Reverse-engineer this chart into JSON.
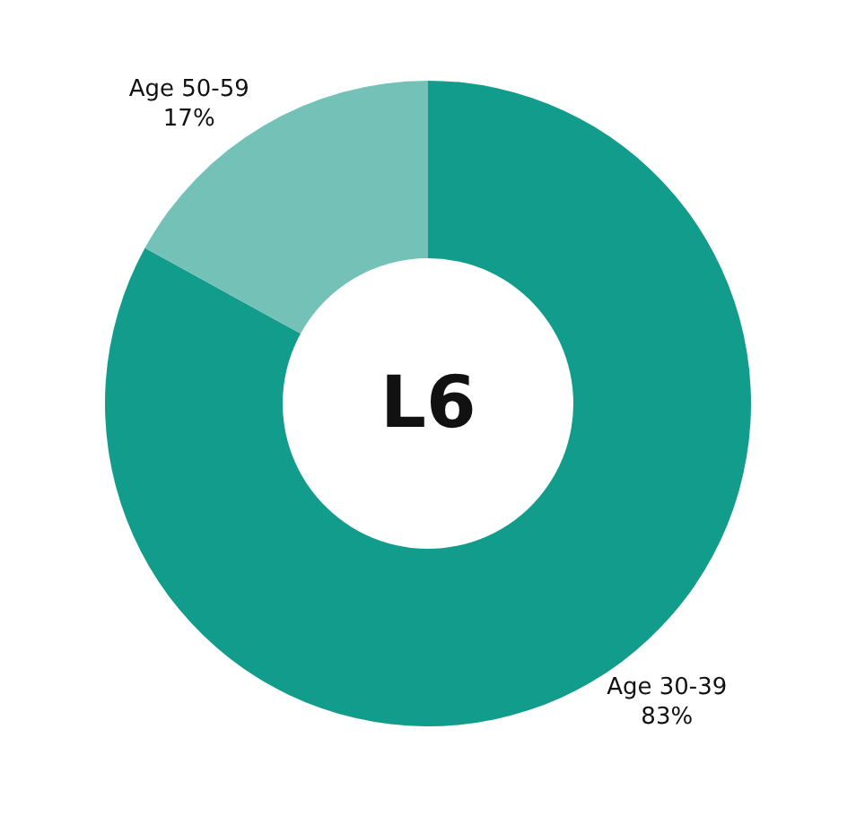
{
  "chart_data": {
    "type": "donut",
    "categories": [
      "Age 30-39",
      "Age 50-59"
    ],
    "values": [
      83,
      17
    ],
    "value_labels": [
      "83%",
      "17%"
    ],
    "colors": [
      "#129c8c",
      "#74c2b7"
    ],
    "annotations": [
      "L6"
    ],
    "legend": false
  }
}
